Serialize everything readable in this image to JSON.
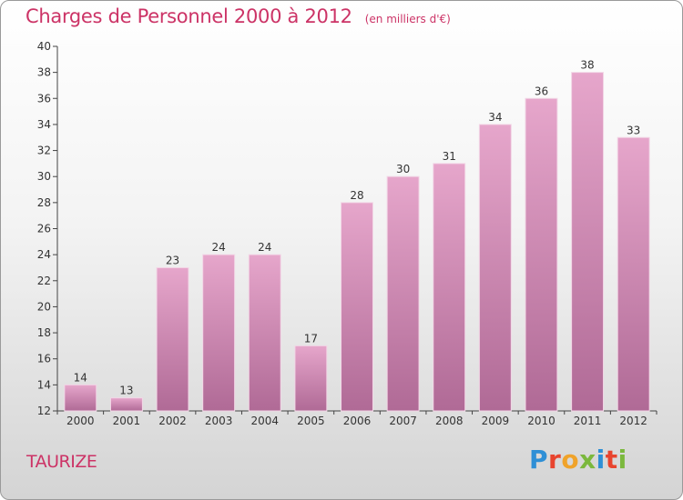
{
  "chart_data": {
    "type": "bar",
    "title": "Charges de Personnel 2000 à 2012",
    "subtitle": "(en milliers d'€)",
    "xlabel": "",
    "ylabel": "",
    "categories": [
      "2000",
      "2001",
      "2002",
      "2003",
      "2004",
      "2005",
      "2006",
      "2007",
      "2008",
      "2009",
      "2010",
      "2011",
      "2012"
    ],
    "values": [
      14,
      13,
      23,
      24,
      24,
      17,
      28,
      30,
      31,
      34,
      36,
      38,
      33
    ],
    "ylim": [
      12,
      40
    ],
    "yticks": [
      12,
      14,
      16,
      18,
      20,
      22,
      24,
      26,
      28,
      30,
      32,
      34,
      36,
      38,
      40
    ],
    "grid": false,
    "bar_color": "#d98ab5"
  },
  "footer": {
    "commune": "TAURIZE",
    "logo_letters": [
      {
        "ch": "P",
        "color": "#2e8fd6"
      },
      {
        "ch": "r",
        "color": "#e8442e"
      },
      {
        "ch": "o",
        "color": "#f0a32a"
      },
      {
        "ch": "x",
        "color": "#7bb83d"
      },
      {
        "ch": "i",
        "color": "#2e8fd6"
      },
      {
        "ch": "t",
        "color": "#e8442e"
      },
      {
        "ch": "i",
        "color": "#7bb83d"
      }
    ]
  }
}
